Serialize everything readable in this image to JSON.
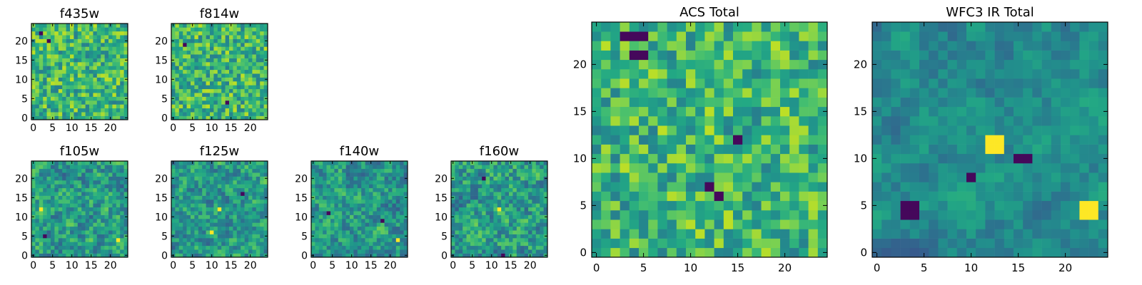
{
  "chart_data": [
    {
      "type": "heatmap",
      "title": "f435w",
      "xlim": [
        0,
        24
      ],
      "ylim": [
        0,
        24
      ],
      "xticks": [
        0,
        5,
        10,
        15,
        20
      ],
      "yticks": [
        0,
        5,
        10,
        15,
        20
      ],
      "xtick_labels": [
        "0",
        "5",
        "10",
        "15",
        "20"
      ],
      "ytick_labels": [
        "0",
        "5",
        "10",
        "15",
        "20"
      ],
      "colormap": "viridis",
      "seed": 11,
      "style": "noise",
      "hotspots": [],
      "coldspots": [
        [
          2,
          22
        ],
        [
          4,
          20
        ]
      ]
    },
    {
      "type": "heatmap",
      "title": "f814w",
      "xlim": [
        0,
        24
      ],
      "ylim": [
        0,
        24
      ],
      "xticks": [
        0,
        5,
        10,
        15,
        20
      ],
      "yticks": [
        0,
        5,
        10,
        15,
        20
      ],
      "xtick_labels": [
        "0",
        "5",
        "10",
        "15",
        "20"
      ],
      "ytick_labels": [
        "0",
        "5",
        "10",
        "15",
        "20"
      ],
      "colormap": "viridis",
      "seed": 23,
      "style": "noise",
      "hotspots": [],
      "coldspots": [
        [
          14,
          4
        ],
        [
          3,
          19
        ]
      ]
    },
    {
      "type": "heatmap",
      "title": "f105w",
      "xlim": [
        0,
        24
      ],
      "ylim": [
        0,
        24
      ],
      "xticks": [
        0,
        5,
        10,
        15,
        20
      ],
      "yticks": [
        0,
        5,
        10,
        15,
        20
      ],
      "xtick_labels": [
        "0",
        "5",
        "10",
        "15",
        "20"
      ],
      "ytick_labels": [
        "0",
        "5",
        "10",
        "15",
        "20"
      ],
      "colormap": "viridis",
      "seed": 37,
      "style": "blocky",
      "hotspots": [
        [
          2,
          12
        ],
        [
          22,
          4
        ]
      ],
      "coldspots": [
        [
          3,
          5
        ]
      ]
    },
    {
      "type": "heatmap",
      "title": "f125w",
      "xlim": [
        0,
        24
      ],
      "ylim": [
        0,
        24
      ],
      "xticks": [
        0,
        5,
        10,
        15,
        20
      ],
      "yticks": [
        0,
        5,
        10,
        15,
        20
      ],
      "xtick_labels": [
        "0",
        "5",
        "10",
        "15",
        "20"
      ],
      "ytick_labels": [
        "0",
        "5",
        "10",
        "15",
        "20"
      ],
      "colormap": "viridis",
      "seed": 41,
      "style": "blocky",
      "hotspots": [
        [
          12,
          12
        ],
        [
          10,
          6
        ]
      ],
      "coldspots": [
        [
          18,
          16
        ]
      ]
    },
    {
      "type": "heatmap",
      "title": "f140w",
      "xlim": [
        0,
        24
      ],
      "ylim": [
        0,
        24
      ],
      "xticks": [
        0,
        5,
        10,
        15,
        20
      ],
      "yticks": [
        0,
        5,
        10,
        15,
        20
      ],
      "xtick_labels": [
        "0",
        "5",
        "10",
        "15",
        "20"
      ],
      "ytick_labels": [
        "0",
        "5",
        "10",
        "15",
        "20"
      ],
      "colormap": "viridis",
      "seed": 53,
      "style": "blocky",
      "hotspots": [
        [
          22,
          4
        ]
      ],
      "coldspots": [
        [
          4,
          11
        ],
        [
          18,
          9
        ]
      ]
    },
    {
      "type": "heatmap",
      "title": "f160w",
      "xlim": [
        0,
        24
      ],
      "ylim": [
        0,
        24
      ],
      "xticks": [
        0,
        5,
        10,
        15,
        20
      ],
      "yticks": [
        0,
        5,
        10,
        15,
        20
      ],
      "xtick_labels": [
        "0",
        "5",
        "10",
        "15",
        "20"
      ],
      "ytick_labels": [
        "0",
        "5",
        "10",
        "15",
        "20"
      ],
      "colormap": "viridis",
      "seed": 67,
      "style": "blocky",
      "hotspots": [
        [
          12,
          12
        ]
      ],
      "coldspots": [
        [
          13,
          0
        ],
        [
          8,
          20
        ]
      ]
    },
    {
      "type": "heatmap",
      "title": "ACS Total",
      "xlim": [
        0,
        24
      ],
      "ylim": [
        0,
        24
      ],
      "xticks": [
        0,
        5,
        10,
        15,
        20
      ],
      "yticks": [
        0,
        5,
        10,
        15,
        20
      ],
      "xtick_labels": [
        "0",
        "5",
        "10",
        "15",
        "20"
      ],
      "ytick_labels": [
        "0",
        "5",
        "10",
        "15",
        "20"
      ],
      "colormap": "viridis",
      "seed": 79,
      "style": "noise",
      "hotspots": [],
      "coldspots": [
        [
          3,
          23
        ],
        [
          4,
          23
        ],
        [
          5,
          23
        ],
        [
          4,
          21
        ],
        [
          5,
          21
        ],
        [
          12,
          7
        ],
        [
          13,
          6
        ],
        [
          15,
          12
        ]
      ]
    },
    {
      "type": "heatmap",
      "title": "WFC3 IR Total",
      "xlim": [
        0,
        24
      ],
      "ylim": [
        0,
        24
      ],
      "xticks": [
        0,
        5,
        10,
        15,
        20
      ],
      "yticks": [
        0,
        5,
        10,
        15,
        20
      ],
      "xtick_labels": [
        "0",
        "5",
        "10",
        "15",
        "20"
      ],
      "ytick_labels": [
        "0",
        "5",
        "10",
        "15",
        "20"
      ],
      "colormap": "viridis",
      "seed": 97,
      "style": "smooth",
      "hotspots": [
        [
          12,
          12
        ],
        [
          13,
          12
        ],
        [
          12,
          11
        ],
        [
          13,
          11
        ],
        [
          22,
          4
        ],
        [
          23,
          4
        ],
        [
          22,
          5
        ],
        [
          23,
          5
        ]
      ],
      "coldspots": [
        [
          15,
          10
        ],
        [
          16,
          10
        ],
        [
          3,
          5
        ],
        [
          4,
          5
        ],
        [
          3,
          4
        ],
        [
          4,
          4
        ],
        [
          10,
          8
        ]
      ]
    }
  ]
}
